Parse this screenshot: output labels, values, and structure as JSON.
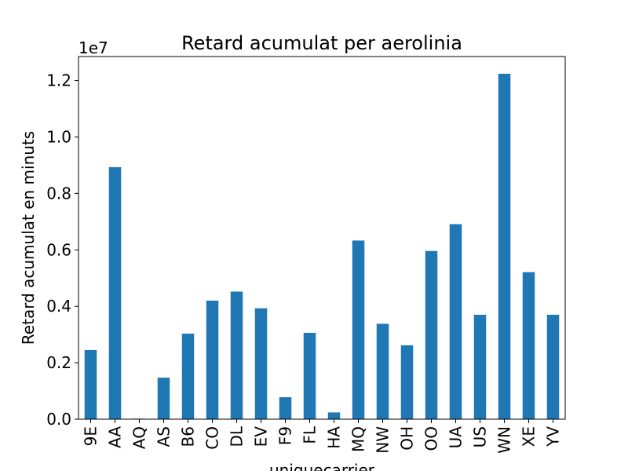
{
  "chart_data": {
    "type": "bar",
    "title": "Retard acumulat per aerolinia",
    "xlabel": "uniquecarrier",
    "ylabel": "Retard acumulat en minuts",
    "offset_label": "1e7",
    "scale_multiplier": 10000000,
    "categories": [
      "9E",
      "AA",
      "AQ",
      "AS",
      "B6",
      "CO",
      "DL",
      "EV",
      "F9",
      "FL",
      "HA",
      "MQ",
      "NW",
      "OH",
      "OO",
      "UA",
      "US",
      "WN",
      "XE",
      "YV"
    ],
    "values": [
      2450000,
      8930000,
      20000,
      1470000,
      3030000,
      4200000,
      4520000,
      3930000,
      780000,
      3060000,
      240000,
      6330000,
      3380000,
      2620000,
      5960000,
      6910000,
      3700000,
      12240000,
      5210000,
      3700000
    ],
    "yticks": [
      0,
      2000000,
      4000000,
      6000000,
      8000000,
      10000000,
      12000000
    ],
    "ytick_labels": [
      "0.0",
      "0.2",
      "0.4",
      "0.6",
      "0.8",
      "1.0",
      "1.2"
    ],
    "ylim": [
      0,
      12850000
    ],
    "bar_color": "#1f77b4",
    "grid": false,
    "legend": "none"
  }
}
